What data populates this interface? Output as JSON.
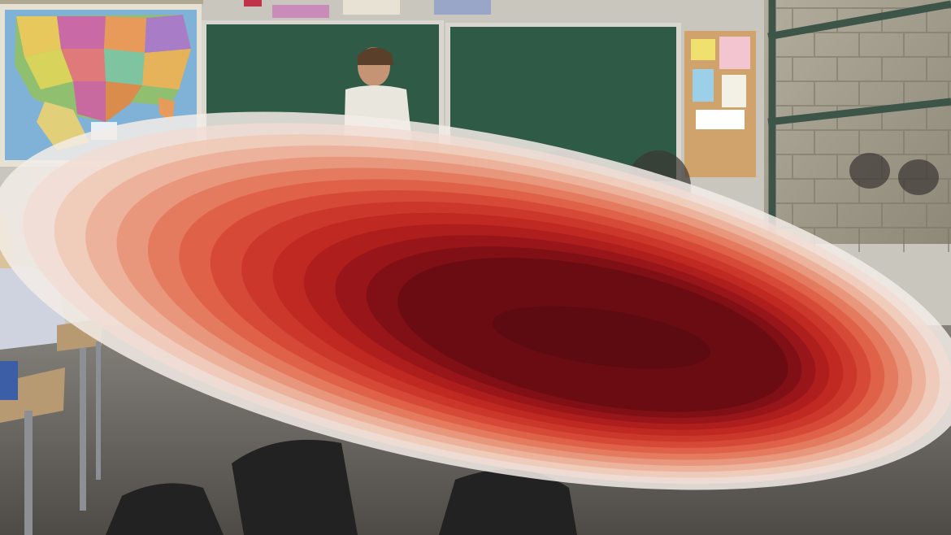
{
  "scene": {
    "description_kind": "classroom photo with heatmap overlay",
    "colors": {
      "wall": "#c9c6bd",
      "floor": "#6f6c67",
      "chalkboard": "#2f5a45",
      "chalkboard_frame": "#d8d6cf",
      "brick": "#a59f8f",
      "window_frame": "#3d5548",
      "map_ocean": "#7fb2d6",
      "corkboard": "#cfa36b",
      "desk": "#b79a72",
      "desk_frame": "#8c8f94",
      "backpack": "#222222",
      "teacher_shirt": "#e9e6de",
      "student_top": "#cfd3e0"
    },
    "heatmap": {
      "levels": 14,
      "color_ramp": [
        "#f3ece7",
        "#f2ddd3",
        "#efc6b4",
        "#ecab93",
        "#e88f73",
        "#e37357",
        "#dc5a41",
        "#d44332",
        "#c93228",
        "#bb2520",
        "#a91b1b",
        "#921518",
        "#7a1015",
        "#640c12"
      ],
      "peak_color": "#5a0a10"
    }
  }
}
